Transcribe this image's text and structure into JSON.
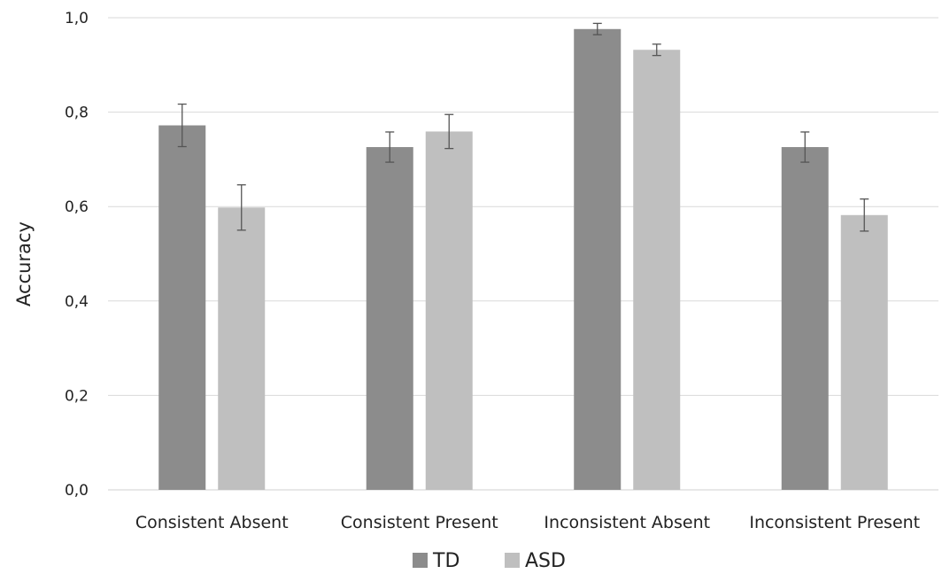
{
  "chart_data": {
    "type": "bar",
    "title": "",
    "xlabel": "",
    "ylabel": "Accuracy",
    "ylim": [
      0,
      1.0
    ],
    "yticks": [
      "0,0",
      "0,2",
      "0,4",
      "0,6",
      "0,8",
      "1,0"
    ],
    "ytick_values": [
      0,
      0.2,
      0.4,
      0.6,
      0.8,
      1.0
    ],
    "grid": true,
    "legend_position": "bottom",
    "categories": [
      "Consistent Absent",
      "Consistent Present",
      "Inconsistent Absent",
      "Inconsistent Present"
    ],
    "series": [
      {
        "name": "TD",
        "color": "#8c8c8c",
        "values": [
          0.772,
          0.726,
          0.976,
          0.726
        ],
        "error": [
          0.045,
          0.032,
          0.012,
          0.032
        ]
      },
      {
        "name": "ASD",
        "color": "#bfbfbf",
        "values": [
          0.598,
          0.759,
          0.932,
          0.582
        ],
        "error": [
          0.048,
          0.036,
          0.012,
          0.034
        ]
      }
    ]
  }
}
